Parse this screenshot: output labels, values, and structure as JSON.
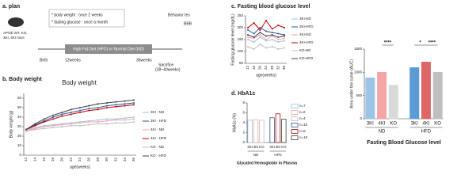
{
  "plan": {
    "label": "a. plan",
    "mice": [
      "APOE WT, KO,",
      "3KI, 4KI mice"
    ],
    "notes": [
      "* body weight : once 2 weeks",
      "* fasting glucose : once a month"
    ],
    "diet": "High Fat Diet (HFD) or Normal Diet (ND)",
    "timepoints": [
      "Birth",
      "12weeks",
      "36weeks"
    ],
    "behavior": "Behavior tes",
    "bbb": "BBB",
    "sacrifice": [
      "Sacrifice",
      "(38~40weeks)"
    ]
  },
  "chart_data": [
    {
      "type": "line",
      "panel": "b. Body weight",
      "title": "Body weight",
      "ylabel": "Body weight (g)",
      "xlabel": "age(weeks)",
      "categories": [
        "12",
        "14",
        "16",
        "18",
        "20",
        "22",
        "24",
        "26",
        "28",
        "30",
        "32",
        "34",
        "36"
      ],
      "ylim": [
        0,
        65
      ],
      "yticks": [
        0,
        10,
        20,
        30,
        40,
        50,
        60
      ],
      "series": [
        {
          "name": "3KI - ND",
          "color": "#9dc3e6",
          "values": [
            27,
            29,
            31,
            32,
            33,
            34,
            35,
            36,
            37,
            38,
            38,
            39,
            40
          ]
        },
        {
          "name": "3KI - HFD",
          "color": "#2f5597",
          "values": [
            27,
            32,
            36,
            40,
            43,
            45,
            47,
            49,
            50,
            52,
            53,
            54,
            55
          ]
        },
        {
          "name": "4KI - ND",
          "color": "#f4a6a6",
          "values": [
            26,
            28,
            30,
            31,
            32,
            33,
            34,
            35,
            35,
            36,
            37,
            37,
            38
          ]
        },
        {
          "name": "4KI - HFD",
          "color": "#c00000",
          "values": [
            27,
            31,
            35,
            38,
            41,
            43,
            45,
            47,
            48,
            50,
            51,
            52,
            53
          ]
        },
        {
          "name": "KO - ND",
          "color": "#bfbfbf",
          "values": [
            25,
            27,
            28,
            29,
            30,
            31,
            31,
            32,
            33,
            33,
            34,
            34,
            35
          ]
        },
        {
          "name": "KO - HFD",
          "color": "#404040",
          "values": [
            27,
            33,
            38,
            42,
            45,
            48,
            50,
            52,
            54,
            55,
            56,
            57,
            58
          ]
        }
      ]
    },
    {
      "type": "line",
      "panel": "c. Fasting blood glucose level",
      "ylabel": "Fasting glucose level (mg/dL)",
      "xlabel": "age(weeks)",
      "categories": [
        "12",
        "16",
        "20",
        "24",
        "28",
        "32",
        "36"
      ],
      "ylim": [
        50,
        250
      ],
      "yticks": [
        50,
        100,
        150,
        200,
        250
      ],
      "series": [
        {
          "name": "3KI-ND",
          "color": "#9dc3e6",
          "values": [
            150,
            140,
            160,
            145,
            150,
            140,
            145
          ]
        },
        {
          "name": "3KI-HFD",
          "color": "#2f5597",
          "values": [
            190,
            175,
            200,
            185,
            180,
            175,
            170
          ]
        },
        {
          "name": "4KI-ND",
          "color": "#f4a6a6",
          "values": [
            160,
            155,
            170,
            150,
            165,
            150,
            155
          ]
        },
        {
          "name": "4KI-HFD",
          "color": "#c00000",
          "values": [
            200,
            220,
            190,
            230,
            195,
            210,
            200
          ]
        },
        {
          "name": "KO-ND",
          "color": "#bfbfbf",
          "values": [
            120,
            110,
            130,
            115,
            120,
            110,
            115
          ]
        },
        {
          "name": "KO-HFD",
          "color": "#404040",
          "values": [
            170,
            160,
            180,
            165,
            170,
            160,
            165
          ]
        }
      ]
    },
    {
      "type": "bar",
      "panel": "d. HbA1c",
      "ylabel": "HbA1c (%)",
      "xlabel": "Glycated Hemoglobin in Plasma",
      "categories": [
        "3KI",
        "4KI",
        "KO",
        "3KI",
        "4KI",
        "KO"
      ],
      "groups": [
        "ND",
        "HFD"
      ],
      "values": [
        4.5,
        4.6,
        4.5,
        5.0,
        5.8,
        4.7
      ],
      "colors": [
        "#9dc3e6",
        "#f4a6a6",
        "#bfbfbf",
        "#2f5597",
        "#c00000",
        "#404040"
      ],
      "n_labels": [
        "n=7",
        "n=6",
        "n=4",
        "n=10",
        "n=8",
        "n=10"
      ],
      "ylim": [
        0,
        8
      ],
      "yticks": [
        0,
        2,
        4,
        6,
        8
      ]
    },
    {
      "type": "bar",
      "ylabel": "Area under the curve (AUC)",
      "xlabel": "Fasting Blood Glucose level",
      "categories": [
        "3KI",
        "4KI",
        "KO",
        "3KI",
        "4KI",
        "KO"
      ],
      "groups": [
        "ND",
        "HFD"
      ],
      "values": [
        880,
        1000,
        720,
        1100,
        1220,
        1000
      ],
      "colors": [
        "#9dc3e6",
        "#f4a6a6",
        "#d9d9d9",
        "#5b9bd5",
        "#e06666",
        "#bfbfbf"
      ],
      "annotations": [
        "****",
        "*",
        "****"
      ],
      "ylim": [
        0,
        1500
      ],
      "yticks": [
        0,
        500,
        1000,
        1500
      ]
    }
  ]
}
